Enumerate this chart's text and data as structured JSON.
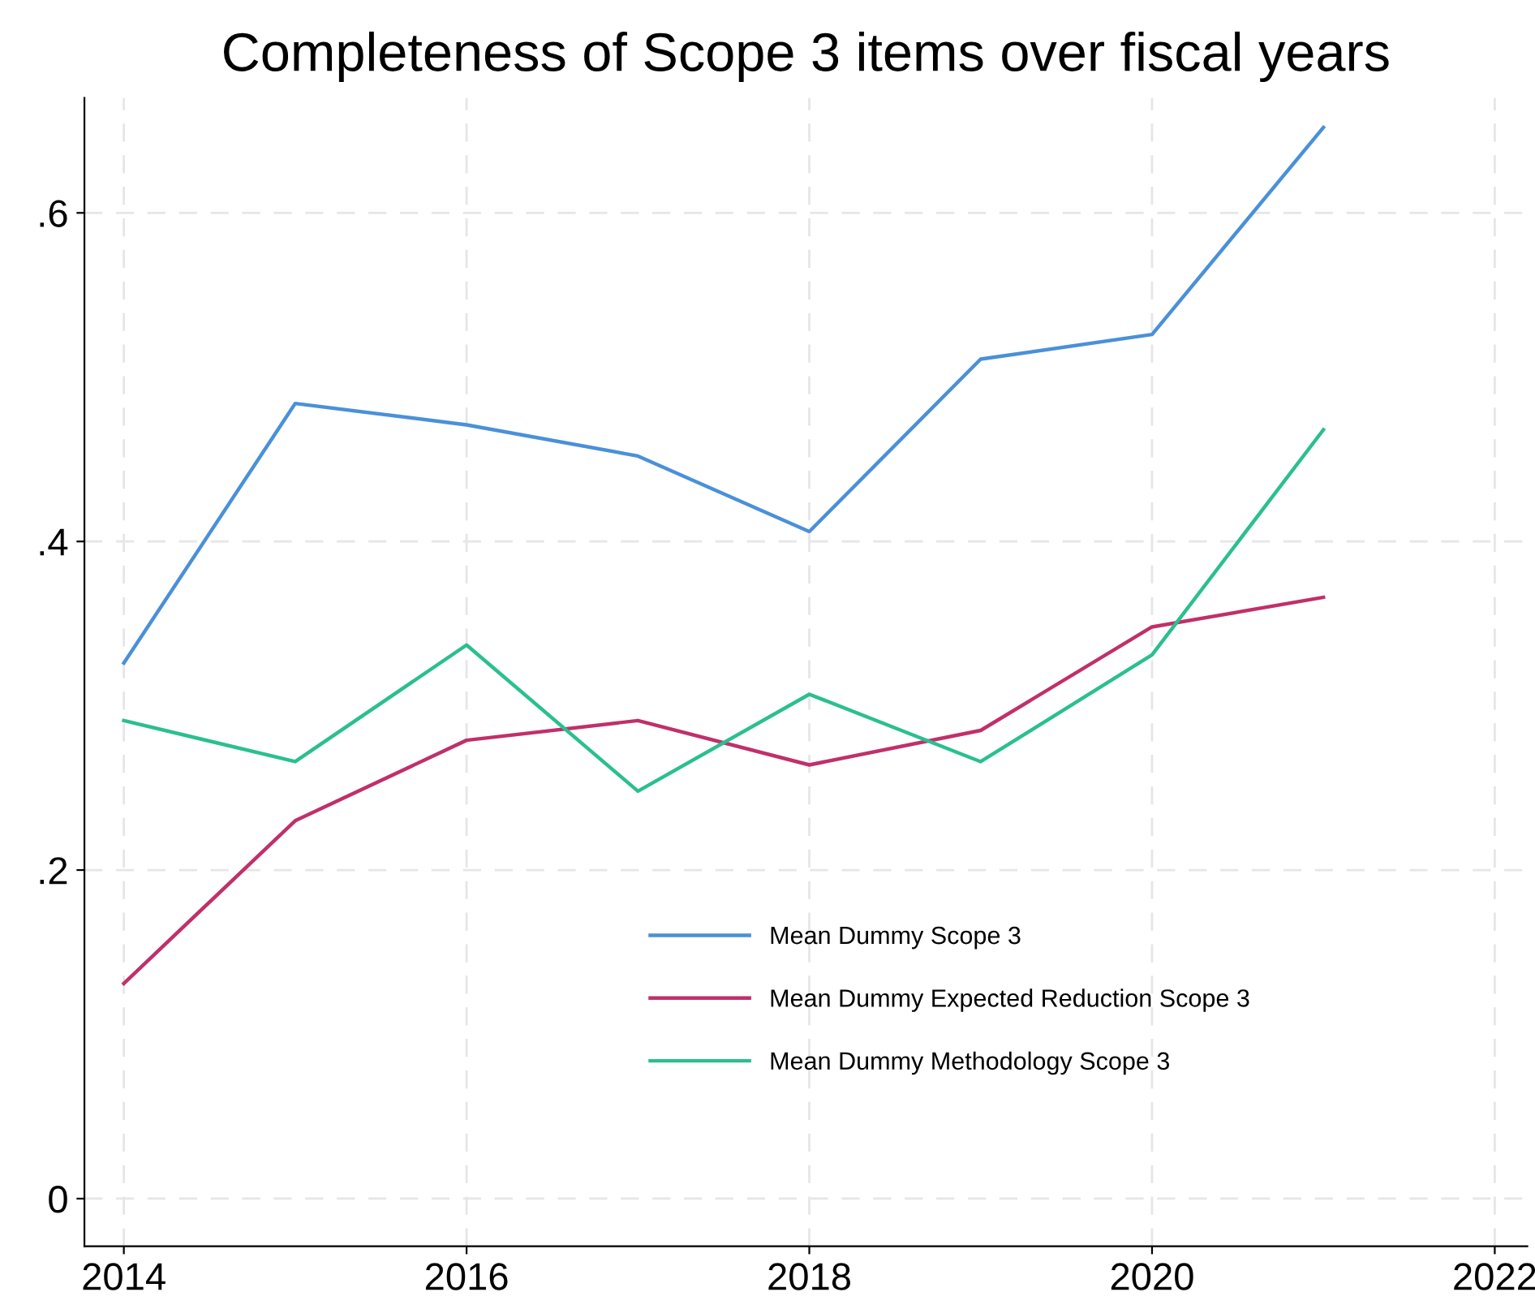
{
  "chart_data": {
    "type": "line",
    "title": "Completeness of Scope 3 items over fiscal years",
    "x": [
      2014,
      2015,
      2016,
      2017,
      2018,
      2019,
      2020,
      2021
    ],
    "series": [
      {
        "name": "Mean Dummy Scope 3",
        "color": "#4a90d9",
        "values": [
          0.326,
          0.484,
          0.471,
          0.452,
          0.406,
          0.511,
          0.526,
          0.652
        ]
      },
      {
        "name": "Mean Dummy Expected Reduction Scope 3",
        "color": "#c0306a",
        "values": [
          0.131,
          0.23,
          0.279,
          0.291,
          0.264,
          0.285,
          0.348,
          0.366
        ]
      },
      {
        "name": "Mean Dummy Methodology Scope 3",
        "color": "#2bbf8f",
        "values": [
          0.291,
          0.266,
          0.337,
          0.248,
          0.307,
          0.266,
          0.331,
          0.468
        ]
      }
    ],
    "xlim": [
      2013.77,
      2022.19
    ],
    "xticks": [
      2014,
      2016,
      2018,
      2020,
      2022
    ],
    "ylim": [
      -0.029,
      0.67
    ],
    "yticks": [
      0,
      {
        "value": 0.2,
        "label": ".2"
      },
      {
        "value": 0.4,
        "label": ".4"
      },
      {
        "value": 0.6,
        "label": ".6"
      }
    ],
    "grid": true,
    "legend": "bottom",
    "marker": "none",
    "line_style": "solid"
  }
}
